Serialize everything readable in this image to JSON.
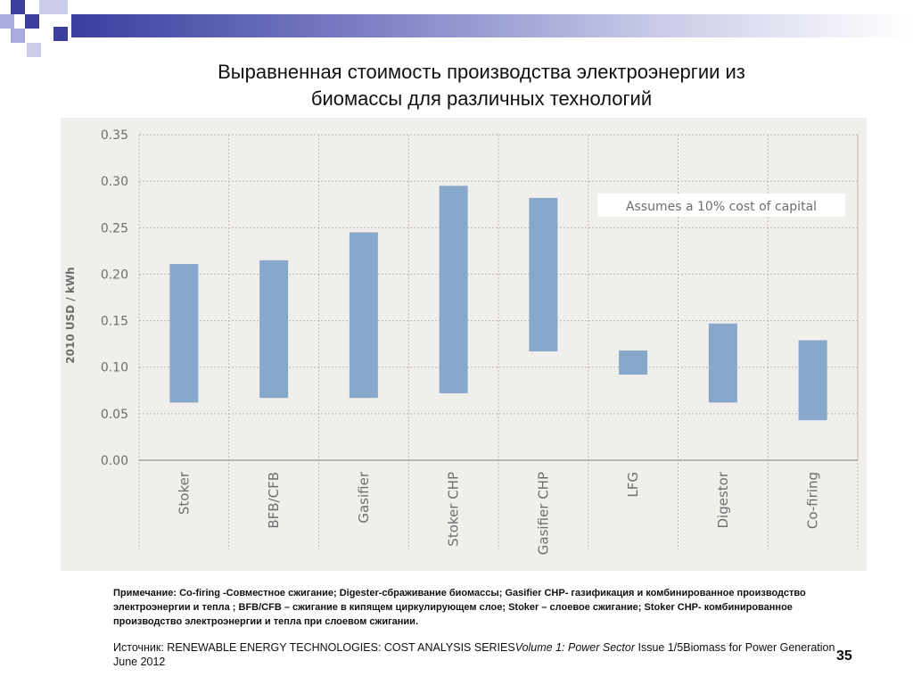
{
  "slide": {
    "title_line1": "Выравненная стоимость производства электроэнергии из",
    "title_line2": "биомассы для различных технологий",
    "note": "Примечание: Co-firing -Совместное сжигание; Digester-сбраживание биомассы; Gasifier CHP- газификация и комбинированное производство электроэнергии и тепла ; BFB/CFB – сжигание в кипящем циркулирующем слое; Stoker – слоевое сжигание; Stoker CHP- комбинированное производство электроэнергии и тепла при слоевом сжигании.",
    "source_prefix": "Источник: RENEWABLE ENERGY TECHNOLOGIES: COST ANALYSIS SERIES",
    "source_italic": "Volume 1: Power Sector",
    "source_suffix": " Issue 1/5Biomass for Power Generation June 2012",
    "page_number": "35",
    "colors": {
      "bar": "#86a8cb",
      "panel": "#f1efec",
      "text_gray": "#6e6e6e",
      "deco_dark": "#3a3f9e",
      "deco_light": "#a9acdc"
    }
  },
  "chart_data": {
    "type": "bar",
    "subtype": "floating-range",
    "title": "",
    "ylabel": "2010 USD / kWh",
    "xlabel": "",
    "ylim": [
      0,
      0.35
    ],
    "yticks": [
      "0.00",
      "0.05",
      "0.10",
      "0.15",
      "0.20",
      "0.25",
      "0.30",
      "0.35"
    ],
    "grid": true,
    "annotation": "Assumes a 10% cost of capital",
    "categories": [
      "Stoker",
      "BFB/CFB",
      "Gasifier",
      "Stoker CHP",
      "Gasifier CHP",
      "LFG",
      "Digestor",
      "Co-firing"
    ],
    "series": [
      {
        "low": [
          0.062,
          0.067,
          0.067,
          0.072,
          0.117,
          0.092,
          0.062,
          0.043
        ],
        "high": [
          0.211,
          0.215,
          0.245,
          0.295,
          0.282,
          0.118,
          0.147,
          0.129
        ]
      }
    ]
  }
}
